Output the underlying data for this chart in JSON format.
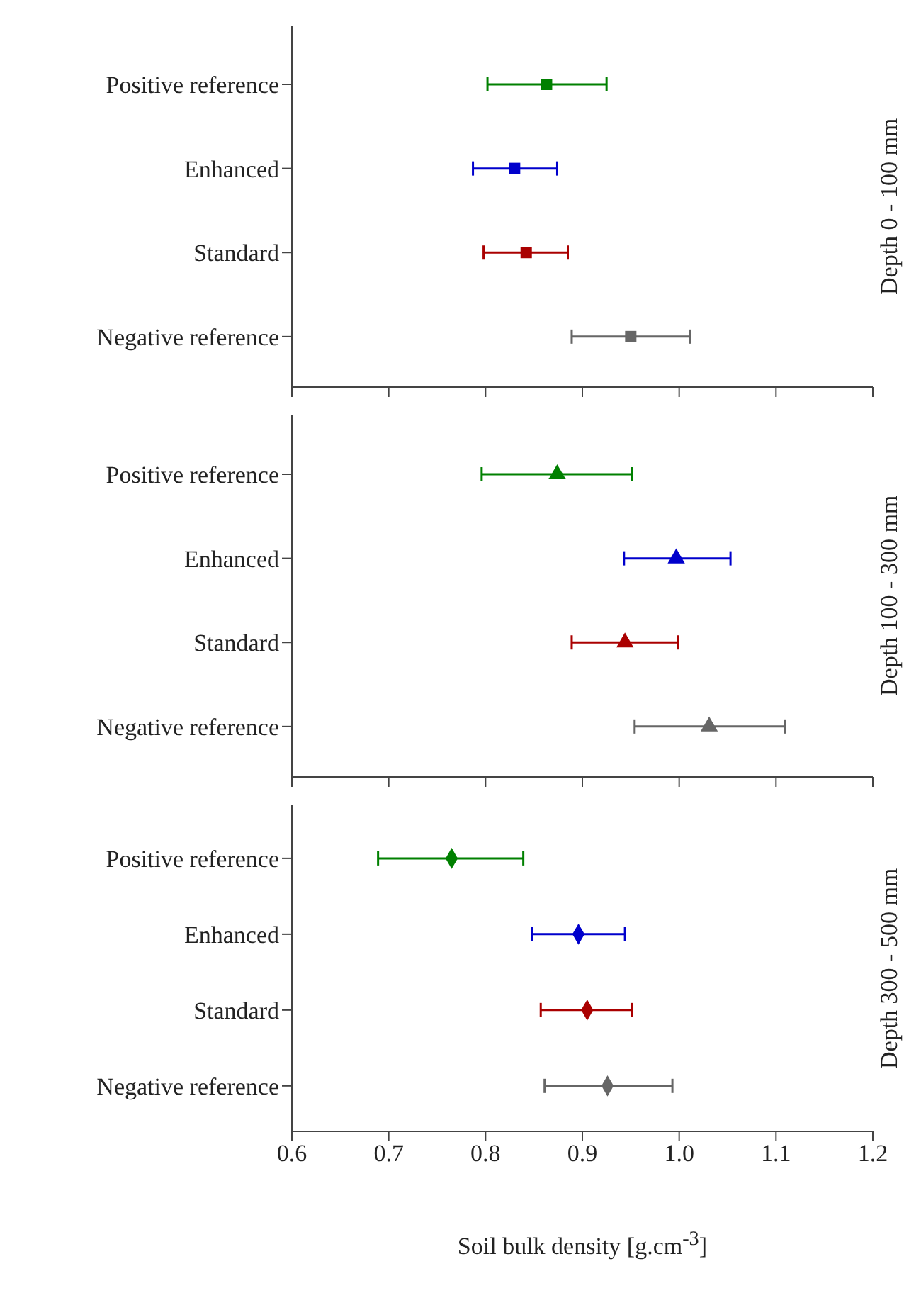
{
  "chart_data": [
    {
      "type": "scatter",
      "orientation": "horizontal",
      "title": "Depth 0 - 100 mm",
      "categories": [
        "Positive reference",
        "Enhanced",
        "Standard",
        "Negative reference"
      ],
      "values": [
        0.863,
        0.83,
        0.842,
        0.95
      ],
      "errors": [
        [
          0.802,
          0.925
        ],
        [
          0.787,
          0.874
        ],
        [
          0.798,
          0.885
        ],
        [
          0.889,
          1.011
        ]
      ],
      "colors": [
        "#008000",
        "#0000cc",
        "#aa0000",
        "#666666"
      ],
      "marker": "square",
      "xlim": [
        0.6,
        1.2
      ],
      "xticks": [
        {
          "value": 0.6,
          "label": null
        },
        {
          "value": 0.7,
          "label": null
        },
        {
          "value": 0.8,
          "label": null
        },
        {
          "value": 0.9,
          "label": null
        },
        {
          "value": 1.0,
          "label": null
        },
        {
          "value": 1.1,
          "label": null
        },
        {
          "value": 1.2,
          "label": null
        }
      ],
      "tick_labels": "y",
      "grid": false,
      "legend": false
    },
    {
      "type": "scatter",
      "orientation": "horizontal",
      "title": "Depth 100 - 300 mm",
      "categories": [
        "Positive reference",
        "Enhanced",
        "Standard",
        "Negative reference"
      ],
      "values": [
        0.874,
        0.997,
        0.944,
        1.031
      ],
      "errors": [
        [
          0.796,
          0.951
        ],
        [
          0.943,
          1.053
        ],
        [
          0.889,
          0.999
        ],
        [
          0.954,
          1.109
        ]
      ],
      "colors": [
        "#008000",
        "#0000cc",
        "#aa0000",
        "#666666"
      ],
      "marker": "triangle",
      "xlim": [
        0.6,
        1.2
      ],
      "xticks": [
        {
          "value": 0.6,
          "label": null
        },
        {
          "value": 0.7,
          "label": null
        },
        {
          "value": 0.8,
          "label": null
        },
        {
          "value": 0.9,
          "label": null
        },
        {
          "value": 1.0,
          "label": null
        },
        {
          "value": 1.1,
          "label": null
        },
        {
          "value": 1.2,
          "label": null
        }
      ],
      "tick_labels": "y",
      "grid": false,
      "legend": false
    },
    {
      "type": "scatter",
      "orientation": "horizontal",
      "title": "Depth 300 - 500 mm",
      "xlabel": "Soil bulk density [g.cm$^{-3}$]",
      "categories": [
        "Positive reference",
        "Enhanced",
        "Standard",
        "Negative reference"
      ],
      "values": [
        0.765,
        0.896,
        0.905,
        0.926
      ],
      "errors": [
        [
          0.689,
          0.839
        ],
        [
          0.848,
          0.944
        ],
        [
          0.857,
          0.951
        ],
        [
          0.861,
          0.993
        ]
      ],
      "colors": [
        "#008000",
        "#0000cc",
        "#aa0000",
        "#666666"
      ],
      "marker": "diamond",
      "xlim": [
        0.6,
        1.2
      ],
      "xticks": [
        0.6,
        0.7,
        0.8,
        0.9,
        {
          "value": 1.0,
          "label": "1.0"
        },
        1.1,
        1.2
      ],
      "grid": false,
      "legend": false
    }
  ]
}
